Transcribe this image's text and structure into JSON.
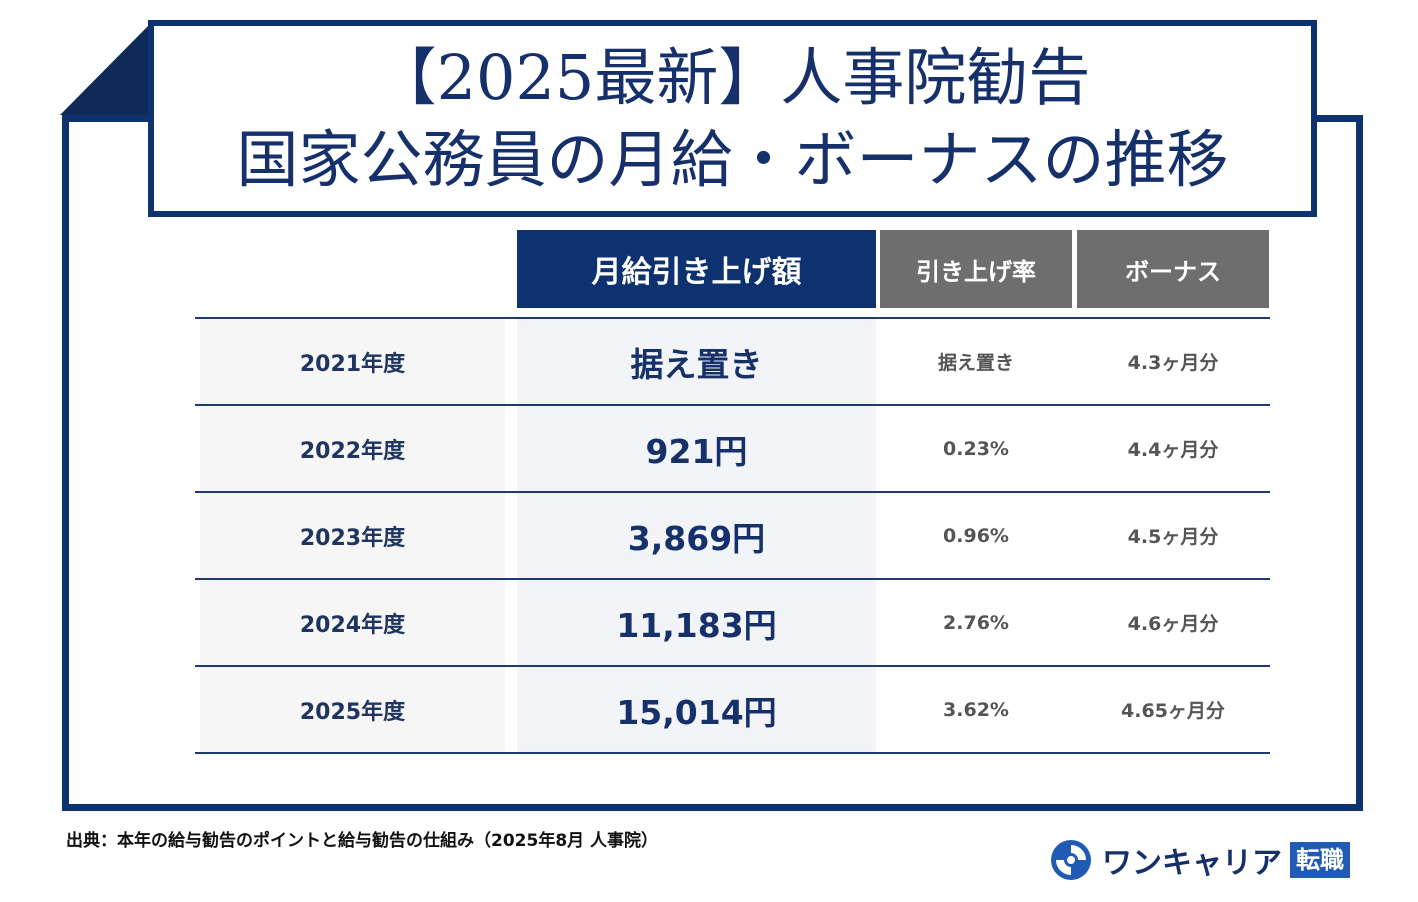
{
  "title": {
    "line1": "【2025最新】人事院勧告",
    "line2": "国家公務員の月給・ボーナスの推移"
  },
  "table": {
    "headers": {
      "main": "月給引き上げ額",
      "rate": "引き上げ率",
      "bonus": "ボーナス"
    },
    "rows": [
      {
        "year": "2021年度",
        "amount": "据え置き",
        "rate": "据え置き",
        "bonus": "4.3ヶ月分"
      },
      {
        "year": "2022年度",
        "amount": "921円",
        "rate": "0.23%",
        "bonus": "4.4ヶ月分"
      },
      {
        "year": "2023年度",
        "amount": "3,869円",
        "rate": "0.96%",
        "bonus": "4.5ヶ月分"
      },
      {
        "year": "2024年度",
        "amount": "11,183円",
        "rate": "2.76%",
        "bonus": "4.6ヶ月分"
      },
      {
        "year": "2025年度",
        "amount": "15,014円",
        "rate": "3.62%",
        "bonus": "4.65ヶ月分"
      }
    ]
  },
  "source": "出典：本年の給与勧告のポイントと給与勧告の仕組み（2025年8月 人事院）",
  "logo": {
    "text": "ワンキャリア",
    "badge": "転職",
    "icon": "onecareer-swirl-icon"
  },
  "colors": {
    "navy": "#0e3270",
    "gray_header": "#6e6e6e",
    "logo_blue": "#1f5bb5"
  }
}
